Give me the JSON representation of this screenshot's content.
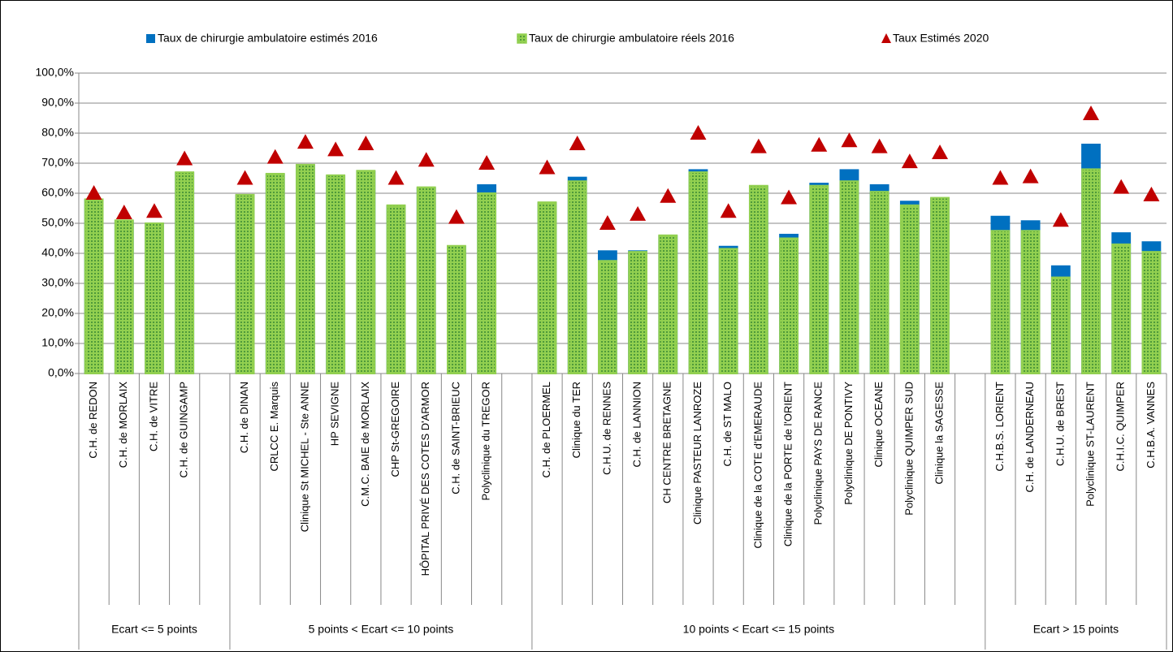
{
  "chart_data": {
    "type": "bar",
    "series": [
      {
        "name": "Taux de chirurgie ambulatoire estimés 2016",
        "color": "#0070c0",
        "values": [
          58,
          51,
          50,
          67,
          59.5,
          66.5,
          69.5,
          66,
          67.5,
          56,
          62,
          42.5,
          63,
          57,
          65.5,
          41,
          41,
          46,
          68,
          42.5,
          62.5,
          46.5,
          63.5,
          68,
          63,
          57.5,
          58.5,
          52.5,
          51,
          36,
          76.5,
          47,
          44
        ]
      },
      {
        "name": "Taux de chirurgie ambulatoire réels 2016",
        "color": "#92d050",
        "values": [
          58,
          51,
          50,
          67,
          59.5,
          66.5,
          69.5,
          66,
          67.5,
          56,
          62,
          42.5,
          60,
          57,
          64,
          37.5,
          40.5,
          46,
          67,
          41.5,
          62.5,
          45,
          62.5,
          64,
          60.5,
          56,
          58.5,
          47.5,
          47.5,
          32,
          68,
          43,
          40.5
        ]
      },
      {
        "name": "Taux Estimés 2020",
        "color": "#c00000",
        "values": [
          60,
          53.5,
          54,
          71.5,
          65,
          72,
          77,
          74.5,
          76.5,
          65,
          71,
          52,
          70,
          68.5,
          76.5,
          50,
          53,
          59,
          80,
          54,
          75.5,
          58.5,
          76,
          77.5,
          75.5,
          70.5,
          73.5,
          65,
          65.5,
          51,
          86.5,
          62,
          59.5
        ]
      }
    ],
    "groups": [
      {
        "label": "Ecart <= 5 points",
        "categories": [
          "C.H. de REDON",
          "C.H. de MORLAIX",
          "C.H. de VITRE",
          "C.H. de GUINGAMP"
        ]
      },
      {
        "label": "5 points < Ecart <= 10 points",
        "categories": [
          "C.H. de DINAN",
          "CRLCC E. Marquis",
          "Clinique St MICHEL - Ste ANNE",
          "HP SEVIGNE",
          "C.M.C. BAIE de MORLAIX",
          "CHP St-GREGOIRE",
          "HÔPITAL PRIVÉ DES COTES D'ARMOR",
          "C.H. de SAINT-BRIEUC",
          "Polyclinique du TREGOR"
        ]
      },
      {
        "label": "10 points < Ecart <= 15 points",
        "categories": [
          "C.H. de PLOERMEL",
          "Clinique du TER",
          "C.H.U. de RENNES",
          "C.H. de LANNION",
          "CH CENTRE BRETAGNE",
          "Clinique PASTEUR LANROZE",
          "C.H. de ST MALO",
          "Clinique de la COTE d'EMERAUDE",
          "Clinique de la PORTE de l'ORIENT",
          "Polyclinique PAYS DE RANCE",
          "Polyclinique DE PONTIVY",
          "Clinique OCEANE",
          "Polyclinique QUIMPER SUD",
          "Clinique la SAGESSE"
        ]
      },
      {
        "label": "Ecart > 15 points",
        "categories": [
          "C.H.B.S. LORIENT",
          "C.H. de LANDERNEAU",
          "C.H.U. de BREST",
          "Polyclinique ST-LAURENT",
          "C.H.I.C. QUIMPER",
          "C.H.B.A. VANNES"
        ]
      }
    ],
    "ylim": [
      0,
      100
    ],
    "yticks": [
      {
        "value": 0,
        "label": "0,0%"
      },
      {
        "value": 10,
        "label": "10,0%"
      },
      {
        "value": 20,
        "label": "20,0%"
      },
      {
        "value": 30,
        "label": "30,0%"
      },
      {
        "value": 40,
        "label": "40,0%"
      },
      {
        "value": 50,
        "label": "50,0%"
      },
      {
        "value": 60,
        "label": "60,0%"
      },
      {
        "value": 70,
        "label": "70,0%"
      },
      {
        "value": 80,
        "label": "80,0%"
      },
      {
        "value": 90,
        "label": "90,0%"
      },
      {
        "value": 100,
        "label": "100,0%"
      }
    ],
    "grid": true,
    "legend": "top"
  }
}
